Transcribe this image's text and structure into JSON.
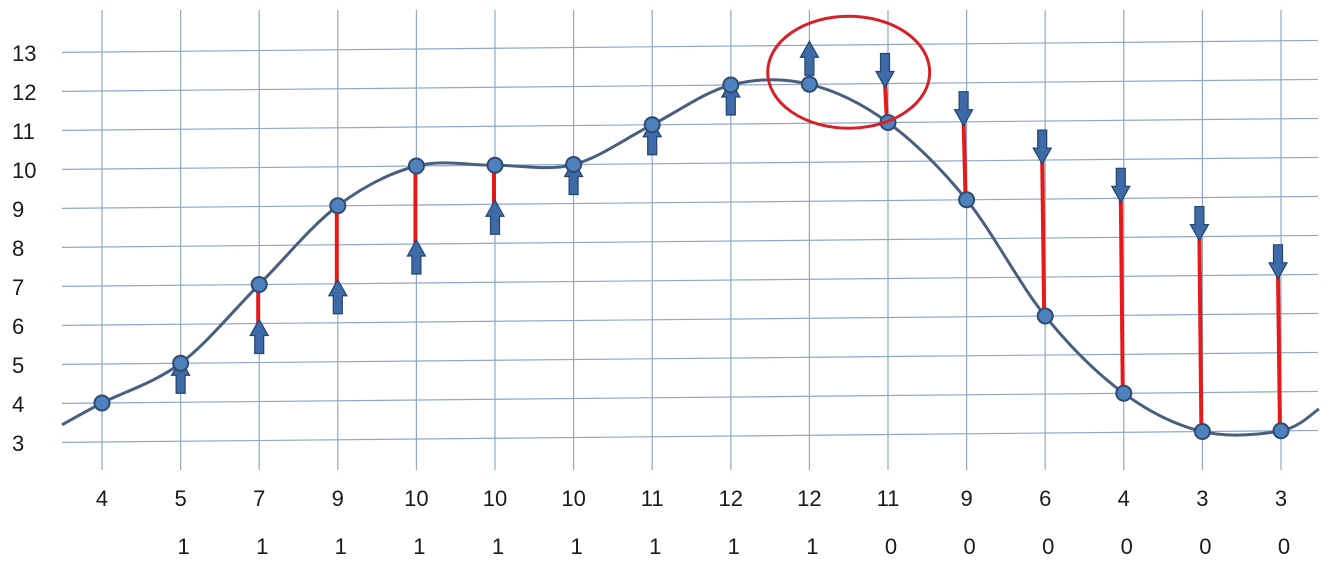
{
  "chart_data": {
    "type": "line",
    "title": "",
    "xlabel": "",
    "ylabel": "",
    "ylim": [
      3,
      13
    ],
    "y_ticks": [
      3,
      4,
      5,
      6,
      7,
      8,
      9,
      10,
      11,
      12,
      13
    ],
    "x_labels": [
      "4",
      "5",
      "7",
      "9",
      "10",
      "10",
      "10",
      "11",
      "12",
      "12",
      "11",
      "9",
      "6",
      "4",
      "3",
      "3"
    ],
    "flags": [
      "",
      "1",
      "1",
      "1",
      "1",
      "1",
      "1",
      "1",
      "1",
      "1",
      "0",
      "0",
      "0",
      "0",
      "0",
      "0"
    ],
    "values": [
      4,
      5,
      7,
      9,
      10,
      10,
      10,
      11,
      12,
      12,
      11,
      9,
      6,
      4,
      3,
      3
    ],
    "markers": [
      {
        "dir": "none",
        "target": null
      },
      {
        "dir": "up",
        "target": 5
      },
      {
        "dir": "up",
        "target": 6
      },
      {
        "dir": "up",
        "target": 7
      },
      {
        "dir": "up",
        "target": 8
      },
      {
        "dir": "up",
        "target": 9
      },
      {
        "dir": "up",
        "target": 10
      },
      {
        "dir": "up",
        "target": 11
      },
      {
        "dir": "up",
        "target": 12
      },
      {
        "dir": "up",
        "target": 13
      },
      {
        "dir": "down",
        "target": 12
      },
      {
        "dir": "down",
        "target": 11
      },
      {
        "dir": "down",
        "target": 10
      },
      {
        "dir": "down",
        "target": 9
      },
      {
        "dir": "down",
        "target": 8
      },
      {
        "dir": "down",
        "target": 7
      }
    ],
    "highlight_indices": [
      9,
      10
    ],
    "grid": true,
    "colors": {
      "curve": "#4a5f80",
      "point": "#4f81bd",
      "point_stroke": "#2f4b70",
      "arrow": "#3e6aa8",
      "arrow_stroke": "#24446e",
      "difference_line": "#e81919",
      "grid": "#8fa8c8",
      "highlight_circle": "#d81f26"
    }
  }
}
